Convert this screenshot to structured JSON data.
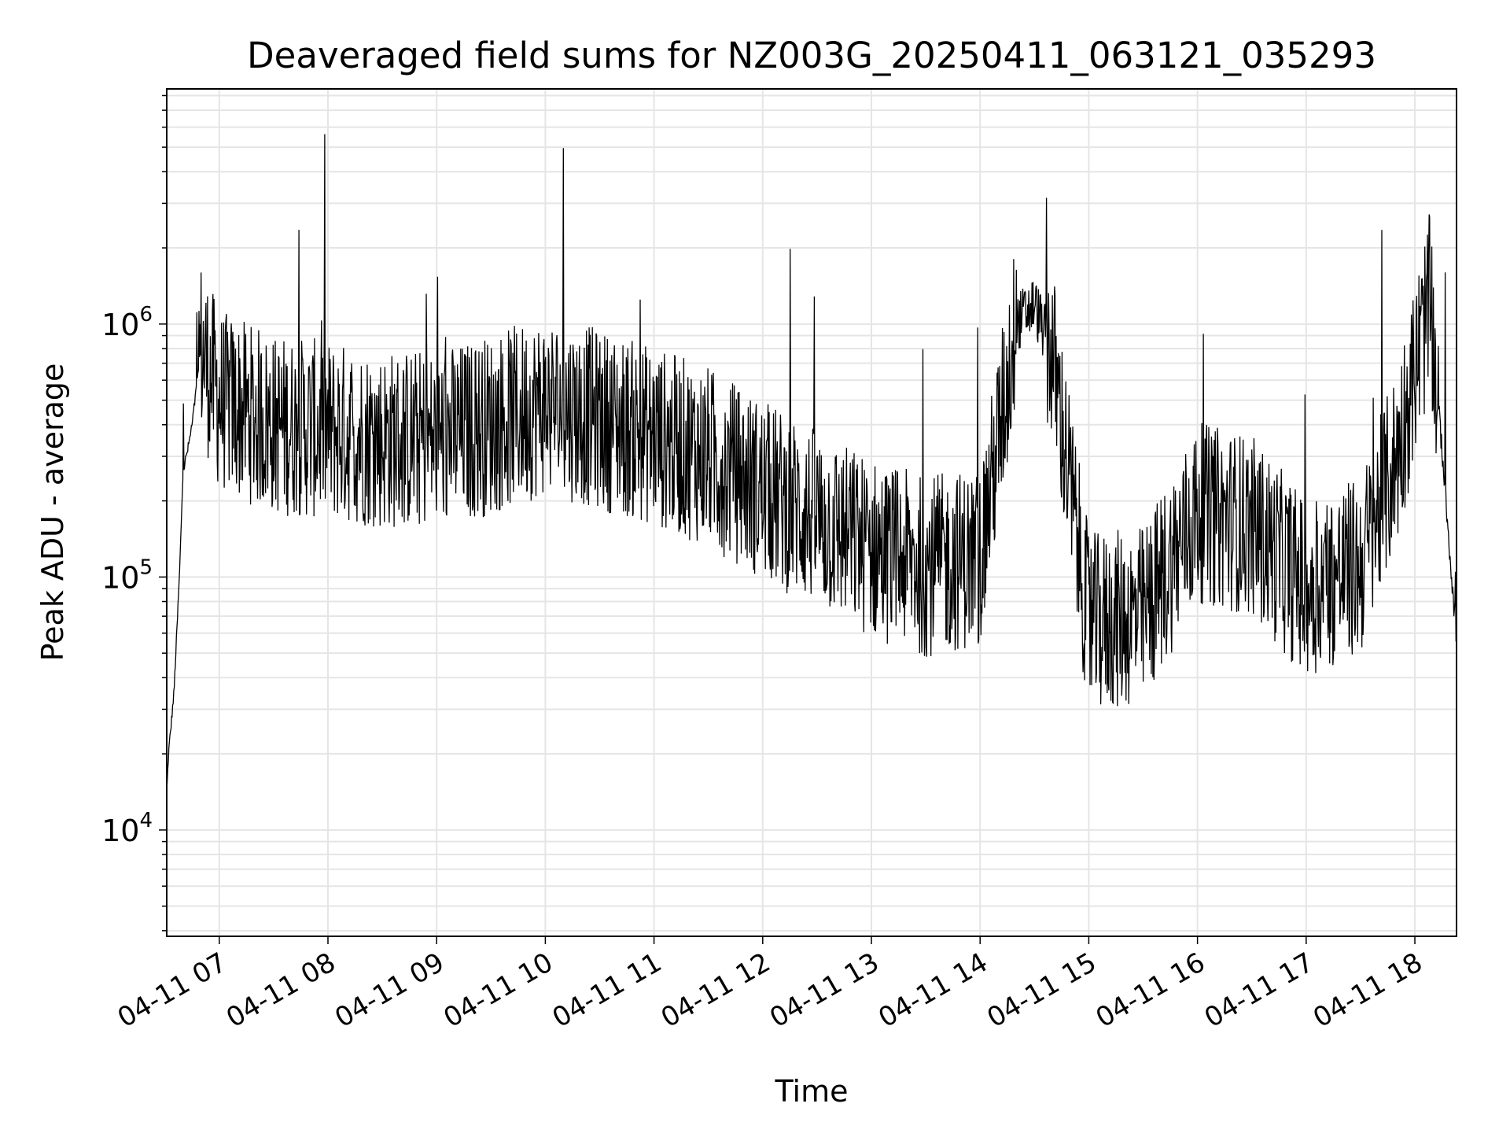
{
  "chart_data": {
    "type": "line",
    "title": "Deaveraged field sums for NZ003G_20250411_063121_035293",
    "xlabel": "Time",
    "ylabel": "Peak ADU - average",
    "yscale": "log",
    "ylim": [
      3800,
      8500000
    ],
    "xlim": [
      "2025-04-11 06:31",
      "2025-04-11 18:23"
    ],
    "x_ticks": [
      "04-11 07",
      "04-11 08",
      "04-11 09",
      "04-11 10",
      "04-11 11",
      "04-11 12",
      "04-11 13",
      "04-11 14",
      "04-11 15",
      "04-11 16",
      "04-11 17",
      "04-11 18"
    ],
    "y_ticks": [
      {
        "base": "10",
        "exp": "4",
        "value": 10000
      },
      {
        "base": "10",
        "exp": "5",
        "value": 100000
      },
      {
        "base": "10",
        "exp": "6",
        "value": 1000000
      }
    ],
    "grid": true,
    "line_color": "#000000",
    "grid_color": "#e5e5e5",
    "series": [
      {
        "x": [
          "2025-04-11 06:31",
          "2025-04-11 06:32",
          "2025-04-11 06:35",
          "2025-04-11 06:38",
          "2025-04-11 06:40",
          "2025-04-11 06:43",
          "2025-04-11 06:45",
          "2025-04-11 06:50",
          "2025-04-11 07:00",
          "2025-04-11 07:30",
          "2025-04-11 08:00",
          "2025-04-11 08:30",
          "2025-04-11 09:00",
          "2025-04-11 09:30",
          "2025-04-11 10:00",
          "2025-04-11 10:30",
          "2025-04-11 11:00",
          "2025-04-11 11:30",
          "2025-04-11 12:00",
          "2025-04-11 12:30",
          "2025-04-11 13:00",
          "2025-04-11 13:30",
          "2025-04-11 14:00",
          "2025-04-11 14:20",
          "2025-04-11 14:30",
          "2025-04-11 14:40",
          "2025-04-11 15:00",
          "2025-04-11 15:30",
          "2025-04-11 16:00",
          "2025-04-11 16:30",
          "2025-04-11 17:00",
          "2025-04-11 17:30",
          "2025-04-11 17:50",
          "2025-04-11 18:00",
          "2025-04-11 18:08",
          "2025-04-11 18:15",
          "2025-04-11 18:22"
        ],
        "y": [
          14000,
          20000,
          35000,
          100000,
          260000,
          330000,
          400000,
          800000,
          500000,
          400000,
          380000,
          350000,
          350000,
          400000,
          480000,
          420000,
          360000,
          300000,
          220000,
          170000,
          130000,
          110000,
          120000,
          1000000,
          1200000,
          750000,
          65000,
          70000,
          180000,
          160000,
          90000,
          110000,
          300000,
          650000,
          1200000,
          320000,
          70000
        ]
      }
    ]
  }
}
